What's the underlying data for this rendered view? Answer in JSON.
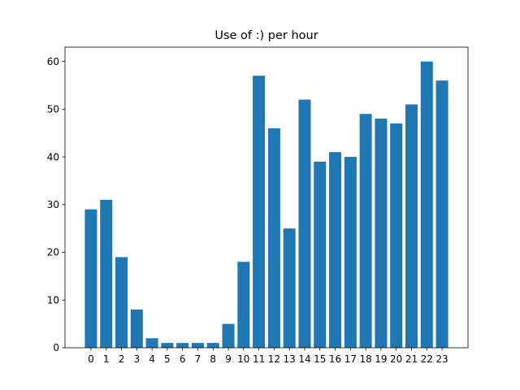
{
  "chart_data": {
    "type": "bar",
    "title": "Use of :) per hour",
    "xlabel": "",
    "ylabel": "",
    "categories": [
      "0",
      "1",
      "2",
      "3",
      "4",
      "5",
      "6",
      "7",
      "8",
      "9",
      "10",
      "11",
      "12",
      "13",
      "14",
      "15",
      "16",
      "17",
      "18",
      "19",
      "20",
      "21",
      "22",
      "23"
    ],
    "values": [
      29,
      31,
      19,
      8,
      2,
      1,
      1,
      1,
      1,
      5,
      18,
      57,
      46,
      25,
      52,
      39,
      41,
      40,
      49,
      48,
      47,
      51,
      60,
      56
    ],
    "ylim": [
      0,
      63
    ],
    "yticks": [
      0,
      10,
      20,
      30,
      40,
      50,
      60
    ],
    "grid": false,
    "legend": "none",
    "bar_color": "#1f77b4"
  }
}
